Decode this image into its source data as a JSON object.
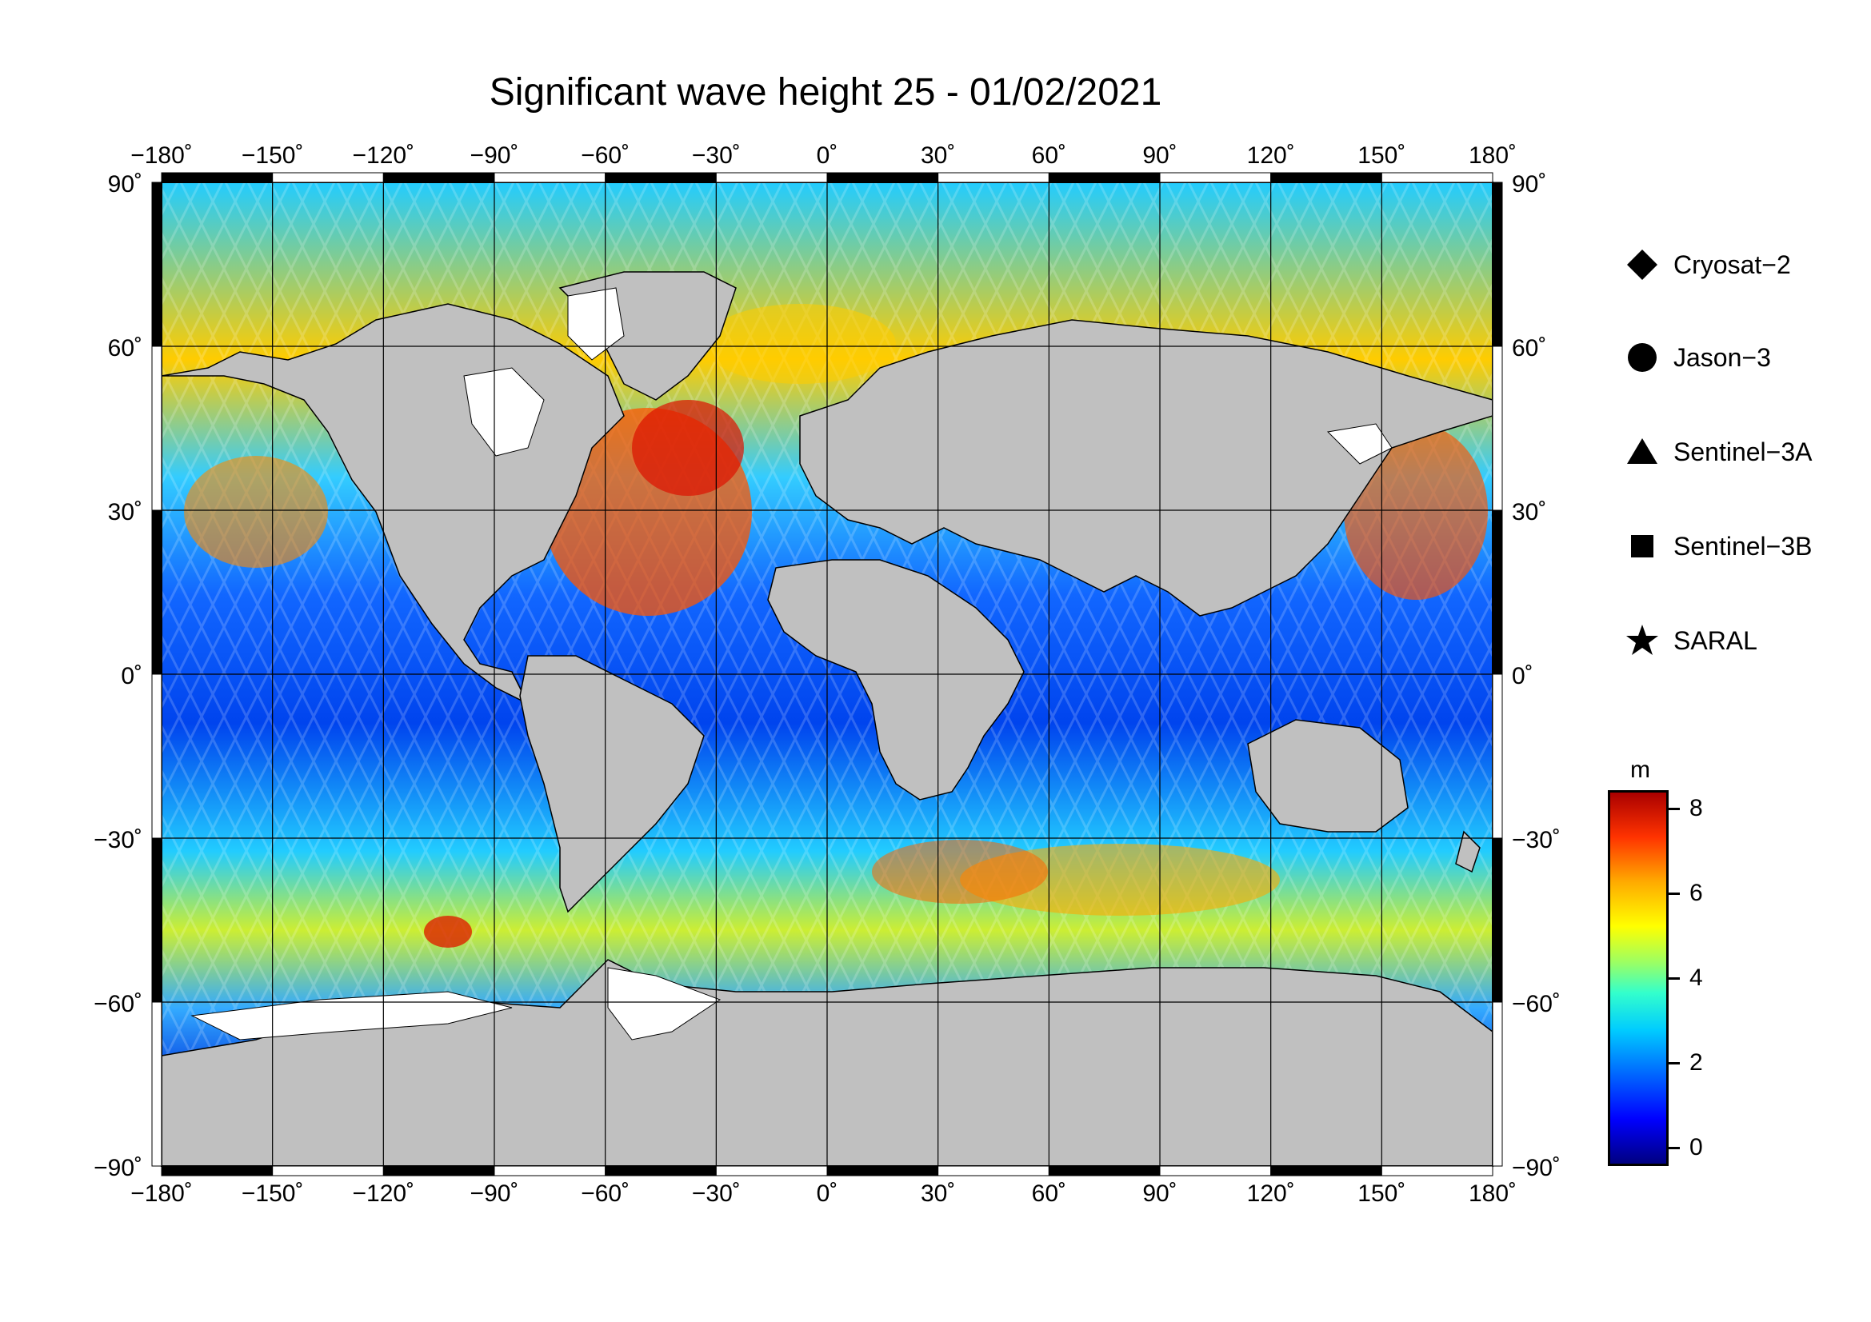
{
  "title": "Significant wave height 25 - 01/02/2021",
  "axes": {
    "lon_ticks": [
      "−180˚",
      "−150˚",
      "−120˚",
      "−90˚",
      "−60˚",
      "−30˚",
      "0˚",
      "30˚",
      "60˚",
      "90˚",
      "120˚",
      "150˚",
      "180˚"
    ],
    "lat_ticks": [
      "90˚",
      "60˚",
      "30˚",
      "0˚",
      "−30˚",
      "−60˚",
      "−90˚"
    ],
    "lon_range": [
      -180,
      180
    ],
    "lat_range": [
      -90,
      90
    ]
  },
  "legend": {
    "items": [
      {
        "label": "Cryosat−2",
        "marker": "diamond"
      },
      {
        "label": "Jason−3",
        "marker": "circle"
      },
      {
        "label": "Sentinel−3A",
        "marker": "triangle"
      },
      {
        "label": "Sentinel−3B",
        "marker": "square"
      },
      {
        "label": "SARAL",
        "marker": "star"
      }
    ]
  },
  "colorbar": {
    "unit": "m",
    "range": [
      -0.5,
      8.5
    ],
    "ticks": [
      "0",
      "2",
      "4",
      "6",
      "8"
    ],
    "colormap": "jet"
  },
  "colors": {
    "land": "#c0c0c0",
    "ice_no_data": "#ffffff",
    "low": "#0000ff",
    "high": "#d00000"
  }
}
